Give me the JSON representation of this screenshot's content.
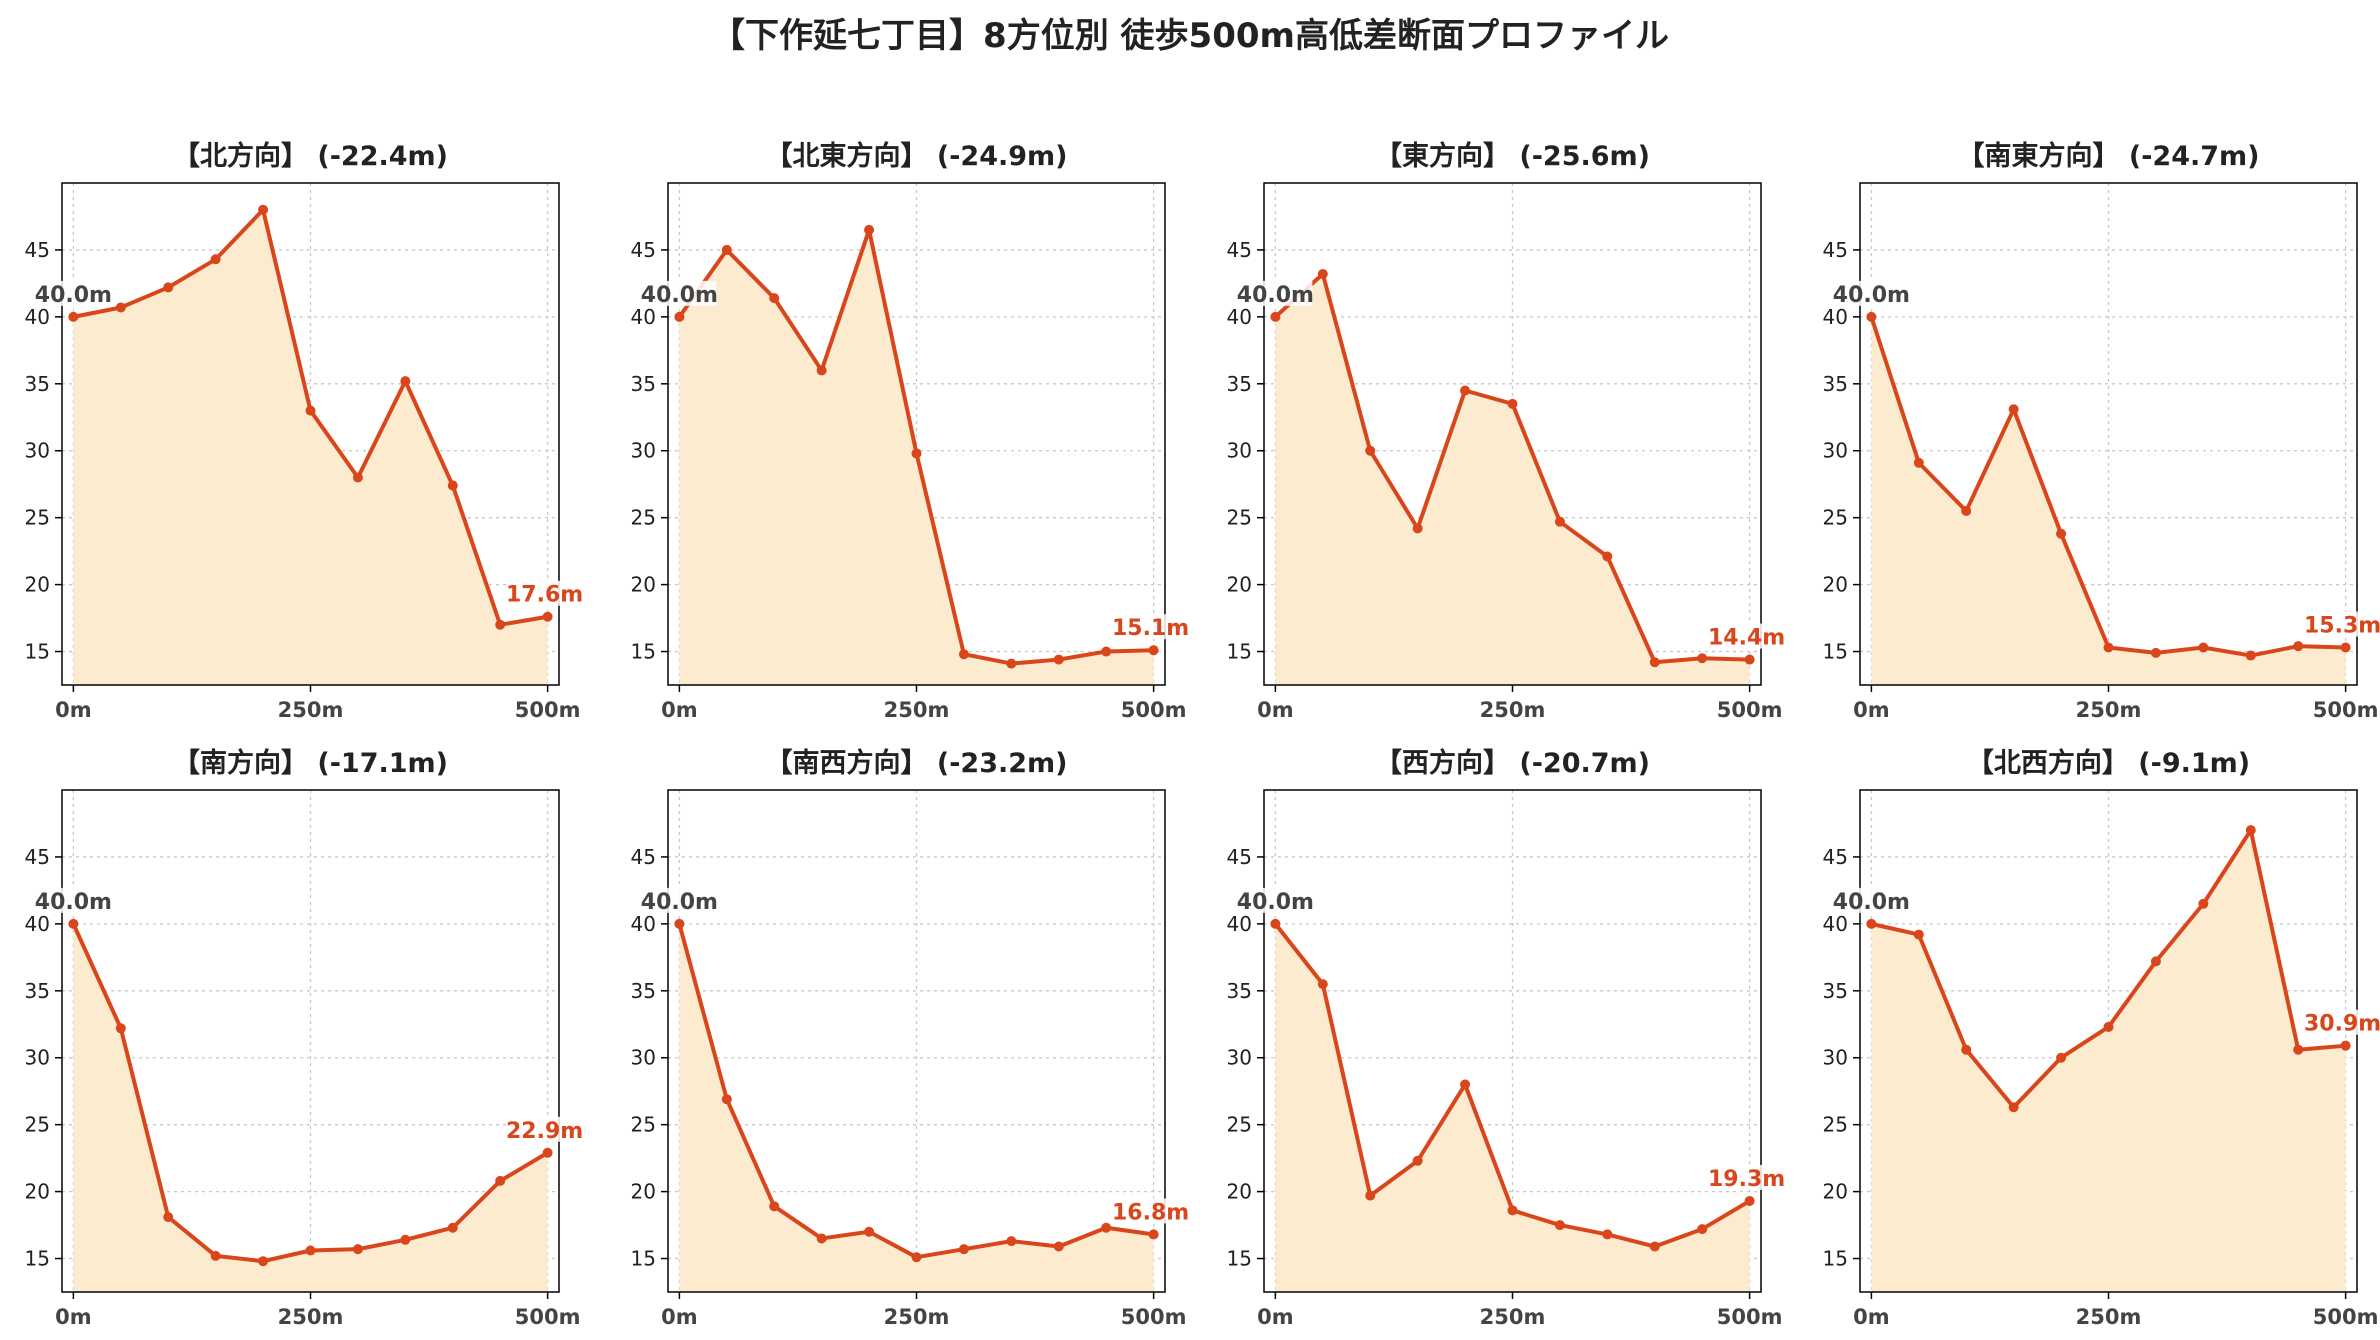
{
  "title": "【下作延七丁目】8方位別 徒歩500m高低差断面プロファイル",
  "colors": {
    "line": "#d9461b",
    "fill": "#fdebd0",
    "start_label": "#444444",
    "end_label": "#d9461b",
    "grid": "#c8c8c8"
  },
  "chart_data": [
    {
      "type": "area",
      "title": "【北方向】 (-22.4m)",
      "x": [
        0,
        50,
        100,
        150,
        200,
        250,
        300,
        350,
        400,
        450,
        500
      ],
      "values": [
        40.0,
        40.7,
        42.2,
        44.3,
        48.0,
        33.0,
        28.0,
        35.2,
        27.4,
        17.0,
        17.6
      ],
      "start_label": "40.0m",
      "end_label": "17.6m",
      "xticks": [
        "0m",
        "250m",
        "500m"
      ],
      "yticks": [
        "15",
        "20",
        "25",
        "30",
        "35",
        "40",
        "45"
      ],
      "ylim": [
        12.5,
        50
      ],
      "xlim": [
        -12,
        512
      ],
      "grid": true
    },
    {
      "type": "area",
      "title": "【北東方向】 (-24.9m)",
      "x": [
        0,
        50,
        100,
        150,
        200,
        250,
        300,
        350,
        400,
        450,
        500
      ],
      "values": [
        40.0,
        45.0,
        41.4,
        36.0,
        46.5,
        29.8,
        14.8,
        14.1,
        14.4,
        15.0,
        15.1
      ],
      "start_label": "40.0m",
      "end_label": "15.1m",
      "xticks": [
        "0m",
        "250m",
        "500m"
      ],
      "yticks": [
        "15",
        "20",
        "25",
        "30",
        "35",
        "40",
        "45"
      ],
      "ylim": [
        12.5,
        50
      ],
      "xlim": [
        -12,
        512
      ],
      "grid": true
    },
    {
      "type": "area",
      "title": "【東方向】 (-25.6m)",
      "x": [
        0,
        50,
        100,
        150,
        200,
        250,
        300,
        350,
        400,
        450,
        500
      ],
      "values": [
        40.0,
        43.2,
        30.0,
        24.2,
        34.5,
        33.5,
        24.7,
        22.1,
        14.2,
        14.5,
        14.4
      ],
      "start_label": "40.0m",
      "end_label": "14.4m",
      "xticks": [
        "0m",
        "250m",
        "500m"
      ],
      "yticks": [
        "15",
        "20",
        "25",
        "30",
        "35",
        "40",
        "45"
      ],
      "ylim": [
        12.5,
        50
      ],
      "xlim": [
        -12,
        512
      ],
      "grid": true
    },
    {
      "type": "area",
      "title": "【南東方向】 (-24.7m)",
      "x": [
        0,
        50,
        100,
        150,
        200,
        250,
        300,
        350,
        400,
        450,
        500
      ],
      "values": [
        40.0,
        29.1,
        25.5,
        33.1,
        23.8,
        15.3,
        14.9,
        15.3,
        14.7,
        15.4,
        15.3
      ],
      "start_label": "40.0m",
      "end_label": "15.3m",
      "xticks": [
        "0m",
        "250m",
        "500m"
      ],
      "yticks": [
        "15",
        "20",
        "25",
        "30",
        "35",
        "40",
        "45"
      ],
      "ylim": [
        12.5,
        50
      ],
      "xlim": [
        -12,
        512
      ],
      "grid": true
    },
    {
      "type": "area",
      "title": "【南方向】 (-17.1m)",
      "x": [
        0,
        50,
        100,
        150,
        200,
        250,
        300,
        350,
        400,
        450,
        500
      ],
      "values": [
        40.0,
        32.2,
        18.1,
        15.2,
        14.8,
        15.6,
        15.7,
        16.4,
        17.3,
        20.8,
        22.9
      ],
      "start_label": "40.0m",
      "end_label": "22.9m",
      "xticks": [
        "0m",
        "250m",
        "500m"
      ],
      "yticks": [
        "15",
        "20",
        "25",
        "30",
        "35",
        "40",
        "45"
      ],
      "ylim": [
        12.5,
        50
      ],
      "xlim": [
        -12,
        512
      ],
      "grid": true
    },
    {
      "type": "area",
      "title": "【南西方向】 (-23.2m)",
      "x": [
        0,
        50,
        100,
        150,
        200,
        250,
        300,
        350,
        400,
        450,
        500
      ],
      "values": [
        40.0,
        26.9,
        18.9,
        16.5,
        17.0,
        15.1,
        15.7,
        16.3,
        15.9,
        17.3,
        16.8
      ],
      "start_label": "40.0m",
      "end_label": "16.8m",
      "xticks": [
        "0m",
        "250m",
        "500m"
      ],
      "yticks": [
        "15",
        "20",
        "25",
        "30",
        "35",
        "40",
        "45"
      ],
      "ylim": [
        12.5,
        50
      ],
      "xlim": [
        -12,
        512
      ],
      "grid": true
    },
    {
      "type": "area",
      "title": "【西方向】 (-20.7m)",
      "x": [
        0,
        50,
        100,
        150,
        200,
        250,
        300,
        350,
        400,
        450,
        500
      ],
      "values": [
        40.0,
        35.5,
        19.7,
        22.3,
        28.0,
        18.6,
        17.5,
        16.8,
        15.9,
        17.2,
        19.3
      ],
      "start_label": "40.0m",
      "end_label": "19.3m",
      "xticks": [
        "0m",
        "250m",
        "500m"
      ],
      "yticks": [
        "15",
        "20",
        "25",
        "30",
        "35",
        "40",
        "45"
      ],
      "ylim": [
        12.5,
        50
      ],
      "xlim": [
        -12,
        512
      ],
      "grid": true
    },
    {
      "type": "area",
      "title": "【北西方向】 (-9.1m)",
      "x": [
        0,
        50,
        100,
        150,
        200,
        250,
        300,
        350,
        400,
        450,
        500
      ],
      "values": [
        40.0,
        39.2,
        30.6,
        26.3,
        30.0,
        32.3,
        37.2,
        41.5,
        47.0,
        30.6,
        30.9
      ],
      "start_label": "40.0m",
      "end_label": "30.9m",
      "xticks": [
        "0m",
        "250m",
        "500m"
      ],
      "yticks": [
        "15",
        "20",
        "25",
        "30",
        "35",
        "40",
        "45"
      ],
      "ylim": [
        12.5,
        50
      ],
      "xlim": [
        -12,
        512
      ],
      "grid": true
    }
  ]
}
